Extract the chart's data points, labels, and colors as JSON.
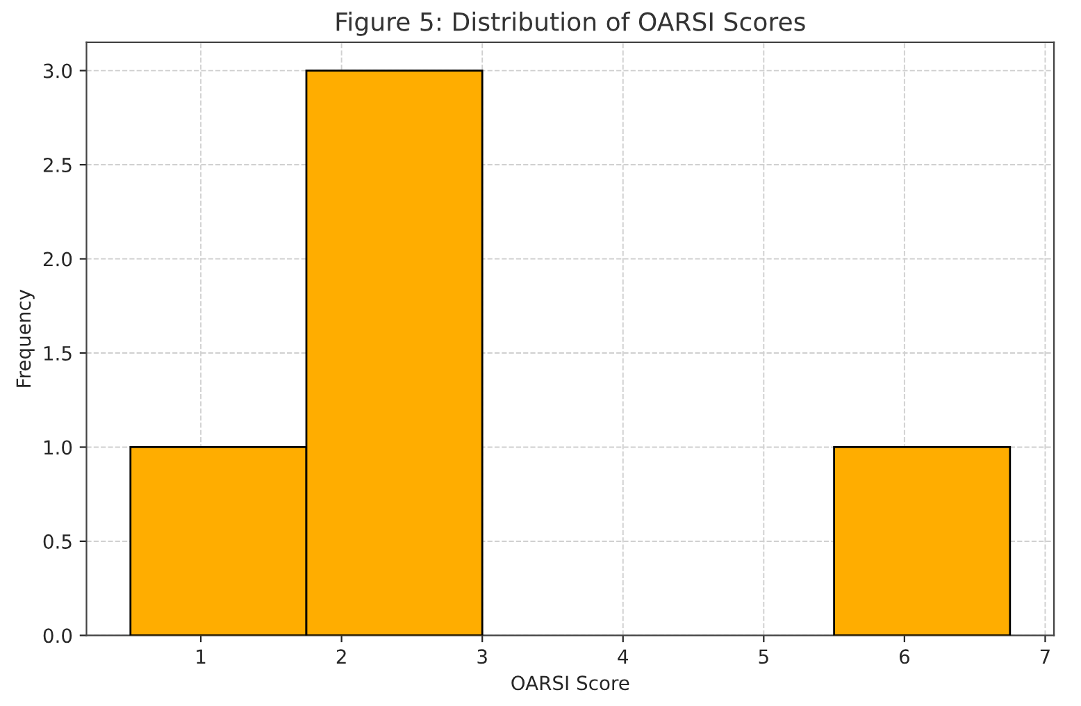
{
  "chart_data": {
    "type": "histogram",
    "title": "Figure 5: Distribution of OARSI Scores",
    "xlabel": "OARSI Score",
    "ylabel": "Frequency",
    "bins": [
      0.5,
      1.75,
      3.0,
      4.25,
      5.5,
      6.75
    ],
    "values": [
      1,
      3,
      0,
      0,
      1
    ],
    "color": "#ffad00",
    "xlim": [
      0.1875,
      7.0625
    ],
    "xticks": [
      1,
      2,
      3,
      4,
      5,
      6,
      7
    ],
    "ylim": [
      0,
      3.15
    ],
    "yticks": [
      {
        "value": 0,
        "label": "0.0"
      },
      {
        "value": 0.5,
        "label": "0.5"
      },
      {
        "value": 1,
        "label": "1.0"
      },
      {
        "value": 1.5,
        "label": "1.5"
      },
      {
        "value": 2,
        "label": "2.0"
      },
      {
        "value": 2.5,
        "label": "2.5"
      },
      {
        "value": 3,
        "label": "3.0"
      }
    ],
    "grid": true,
    "line_style": "dashed"
  }
}
